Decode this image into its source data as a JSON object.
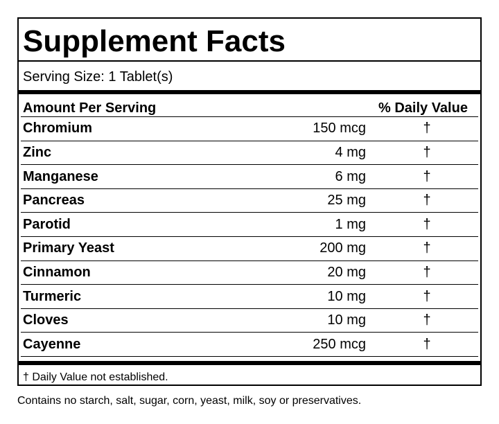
{
  "header": {
    "title": "Supplement Facts",
    "serving_size": "Serving Size: 1 Tablet(s)"
  },
  "table": {
    "columns": [
      "Amount Per Serving",
      "% Daily Value"
    ],
    "rows": [
      [
        "Chromium",
        "150 mcg",
        "†"
      ],
      [
        "Zinc",
        "4 mg",
        "†"
      ],
      [
        "Manganese",
        "6 mg",
        "†"
      ],
      [
        "Pancreas",
        "25 mg",
        "†"
      ],
      [
        "Parotid",
        "1 mg",
        "†"
      ],
      [
        "Primary Yeast",
        "200 mg",
        "†"
      ],
      [
        "Cinnamon",
        "20 mg",
        "†"
      ],
      [
        "Turmeric",
        "10 mg",
        "†"
      ],
      [
        "Cloves",
        "10 mg",
        "†"
      ],
      [
        "Cayenne",
        "250 mcg",
        "†"
      ]
    ]
  },
  "footnote": "† Daily Value not established.",
  "note": "Contains no starch, salt, sugar, corn, yeast, milk, soy or preservatives."
}
